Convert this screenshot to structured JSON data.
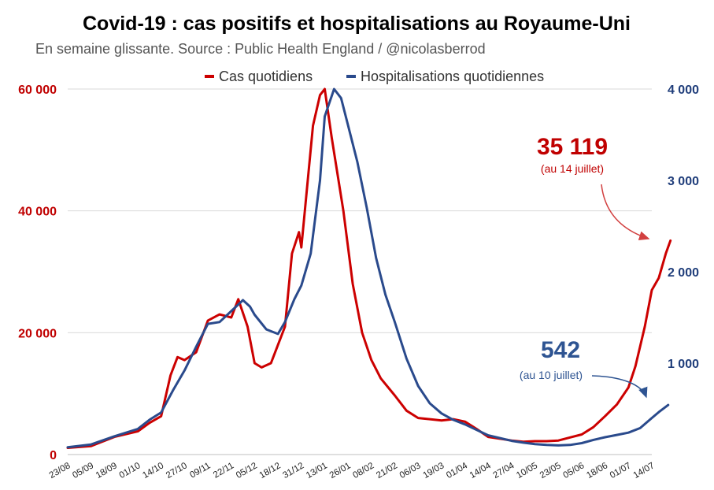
{
  "chart_data": {
    "type": "line",
    "title": "Covid-19 : cas positifs et hospitalisations au Royaume-Uni",
    "subtitle": "En semaine glissante. Source : Public Health England / @nicolasberrod",
    "x_ticks": [
      "23/08",
      "05/09",
      "18/09",
      "01/10",
      "14/10",
      "27/10",
      "09/11",
      "22/11",
      "05/12",
      "18/12",
      "31/12",
      "13/01",
      "26/01",
      "08/02",
      "21/02",
      "06/03",
      "19/03",
      "01/04",
      "14/04",
      "27/04",
      "10/05",
      "23/05",
      "05/06",
      "18/06",
      "01/07",
      "14/07"
    ],
    "y_left": {
      "ticks": [
        0,
        20000,
        40000,
        60000
      ],
      "tick_labels": [
        "0",
        "20 000",
        "40 000",
        "60 000"
      ],
      "ylim": [
        0,
        60000
      ]
    },
    "y_right": {
      "ticks": [
        1000,
        2000,
        3000,
        4000
      ],
      "tick_labels": [
        "1 000",
        "2 000",
        "3 000",
        "4 000"
      ],
      "ylim": [
        0,
        4000
      ]
    },
    "series": [
      {
        "name": "Cas quotidiens",
        "axis": "left",
        "color": "#cc0000",
        "points": [
          [
            0,
            1100
          ],
          [
            1,
            1400
          ],
          [
            2,
            2900
          ],
          [
            3,
            3800
          ],
          [
            3.5,
            5200
          ],
          [
            4,
            6300
          ],
          [
            4.4,
            13000
          ],
          [
            4.7,
            16000
          ],
          [
            5,
            15500
          ],
          [
            5.5,
            16800
          ],
          [
            6,
            22000
          ],
          [
            6.5,
            23000
          ],
          [
            7,
            22500
          ],
          [
            7.3,
            25500
          ],
          [
            7.7,
            21000
          ],
          [
            8,
            15000
          ],
          [
            8.3,
            14300
          ],
          [
            8.7,
            15000
          ],
          [
            9,
            18000
          ],
          [
            9.3,
            21000
          ],
          [
            9.6,
            33000
          ],
          [
            9.9,
            36500
          ],
          [
            10,
            34000
          ],
          [
            10.5,
            54000
          ],
          [
            10.8,
            59000
          ],
          [
            11,
            60000
          ],
          [
            11.3,
            52000
          ],
          [
            11.8,
            40000
          ],
          [
            12.2,
            28000
          ],
          [
            12.6,
            20000
          ],
          [
            13,
            15500
          ],
          [
            13.4,
            12500
          ],
          [
            14,
            9700
          ],
          [
            14.5,
            7200
          ],
          [
            15,
            6000
          ],
          [
            15.5,
            5800
          ],
          [
            16,
            5600
          ],
          [
            16.5,
            5800
          ],
          [
            17,
            5400
          ],
          [
            17.5,
            4200
          ],
          [
            18,
            2900
          ],
          [
            18.5,
            2600
          ],
          [
            19,
            2300
          ],
          [
            19.5,
            2100
          ],
          [
            20,
            2200
          ],
          [
            20.5,
            2200
          ],
          [
            21,
            2300
          ],
          [
            21.5,
            2800
          ],
          [
            22,
            3300
          ],
          [
            22.5,
            4500
          ],
          [
            23,
            6300
          ],
          [
            23.5,
            8200
          ],
          [
            24,
            11000
          ],
          [
            24.3,
            14500
          ],
          [
            24.7,
            21000
          ],
          [
            25,
            27000
          ],
          [
            25.3,
            29000
          ],
          [
            25.6,
            33000
          ],
          [
            25.8,
            35119
          ]
        ]
      },
      {
        "name": "Hospitalisations quotidiennes",
        "axis": "right",
        "color": "#2a4a8c",
        "points": [
          [
            0,
            80
          ],
          [
            1,
            110
          ],
          [
            2,
            200
          ],
          [
            3,
            280
          ],
          [
            3.5,
            380
          ],
          [
            4,
            460
          ],
          [
            4.5,
            700
          ],
          [
            5,
            920
          ],
          [
            5.5,
            1180
          ],
          [
            6,
            1430
          ],
          [
            6.5,
            1450
          ],
          [
            7,
            1570
          ],
          [
            7.5,
            1690
          ],
          [
            7.8,
            1620
          ],
          [
            8,
            1530
          ],
          [
            8.5,
            1370
          ],
          [
            9,
            1320
          ],
          [
            9.3,
            1450
          ],
          [
            9.7,
            1700
          ],
          [
            10,
            1850
          ],
          [
            10.4,
            2200
          ],
          [
            10.8,
            3000
          ],
          [
            11,
            3700
          ],
          [
            11.4,
            4000
          ],
          [
            11.7,
            3900
          ],
          [
            12,
            3600
          ],
          [
            12.4,
            3200
          ],
          [
            12.8,
            2700
          ],
          [
            13.2,
            2150
          ],
          [
            13.6,
            1750
          ],
          [
            14,
            1450
          ],
          [
            14.5,
            1050
          ],
          [
            15,
            750
          ],
          [
            15.5,
            560
          ],
          [
            16,
            450
          ],
          [
            16.5,
            380
          ],
          [
            17,
            330
          ],
          [
            17.5,
            270
          ],
          [
            18,
            210
          ],
          [
            18.5,
            180
          ],
          [
            19,
            150
          ],
          [
            19.5,
            130
          ],
          [
            20,
            115
          ],
          [
            20.5,
            105
          ],
          [
            21,
            100
          ],
          [
            21.5,
            105
          ],
          [
            22,
            125
          ],
          [
            22.5,
            160
          ],
          [
            23,
            190
          ],
          [
            23.5,
            215
          ],
          [
            24,
            240
          ],
          [
            24.5,
            290
          ],
          [
            25,
            400
          ],
          [
            25.3,
            465
          ],
          [
            25.7,
            542
          ]
        ]
      }
    ],
    "legend": [
      "Cas quotidiens",
      "Hospitalisations quotidiennes"
    ],
    "legend_position": "top-right",
    "annotations": [
      {
        "value_label": "35 119",
        "note": "(au 14 juillet)",
        "series": "Cas quotidiens"
      },
      {
        "value_label": "542",
        "note": "(au 10 juillet)",
        "series": "Hospitalisations quotidiennes"
      }
    ]
  }
}
